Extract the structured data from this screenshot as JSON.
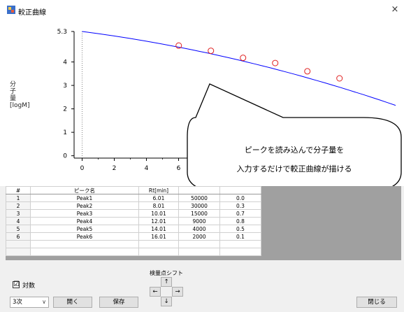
{
  "window": {
    "title": "較正曲線",
    "close_glyph": "×"
  },
  "chart_data": {
    "type": "scatter",
    "ylabel": "分子量[logM]",
    "xlabel": "",
    "y_ticks": [
      "5.3",
      "4",
      "3",
      "2",
      "1",
      "0"
    ],
    "x_ticks": [
      "0",
      "2",
      "4",
      "6"
    ],
    "xlim": [
      -0.5,
      19.5
    ],
    "ylim": [
      -0.1,
      5.3
    ],
    "series": [
      {
        "values_x": [
          6.01,
          8.01,
          10.01,
          12.01,
          14.01,
          16.01
        ],
        "values_y": [
          4.699,
          4.477,
          4.176,
          3.954,
          3.602,
          3.301
        ]
      }
    ],
    "curve": {
      "x_start": 0,
      "y_start": 5.3,
      "x_end": 19.5,
      "y_end": 2.15
    },
    "point_color": "#e02020",
    "curve_color": "#0000ff"
  },
  "callout": {
    "line1": "ピークを読み込んで分子量を",
    "line2": "入力するだけで較正曲線が描ける"
  },
  "table": {
    "headers": [
      "#",
      "ピーク名",
      "Rt[min]",
      "",
      ""
    ],
    "rows": [
      [
        "1",
        "Peak1",
        "6.01",
        "50000",
        "0.0"
      ],
      [
        "2",
        "Peak2",
        "8.01",
        "30000",
        "0.3"
      ],
      [
        "3",
        "Peak3",
        "10.01",
        "15000",
        "0.7"
      ],
      [
        "4",
        "Peak4",
        "12.01",
        "9000",
        "0.8"
      ],
      [
        "5",
        "Peak5",
        "14.01",
        "4000",
        "0.5"
      ],
      [
        "6",
        "Peak6",
        "16.01",
        "2000",
        "0.1"
      ]
    ]
  },
  "controls": {
    "log_label": "対数",
    "log_checked": "☑",
    "order_value": "3次",
    "order_chevron": "∨",
    "open_label": "開く",
    "save_label": "保存",
    "shift_label": "検量点シフト",
    "up": "↑",
    "down": "↓",
    "left": "←",
    "right": "→",
    "close_label": "閉じる"
  },
  "colors": {
    "accent_points": "#e02020",
    "curve": "#0000ff",
    "panel": "#f0f0f0"
  }
}
